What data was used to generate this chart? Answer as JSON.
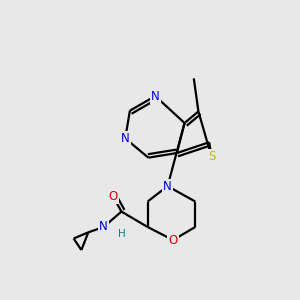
{
  "background_color": "#e8e8e8",
  "atom_colors": {
    "C": "#000000",
    "N": "#0000ee",
    "O": "#dd0000",
    "S": "#bbbb00",
    "H": "#000000"
  },
  "bond_lw": 1.6,
  "font_size": 8.5
}
